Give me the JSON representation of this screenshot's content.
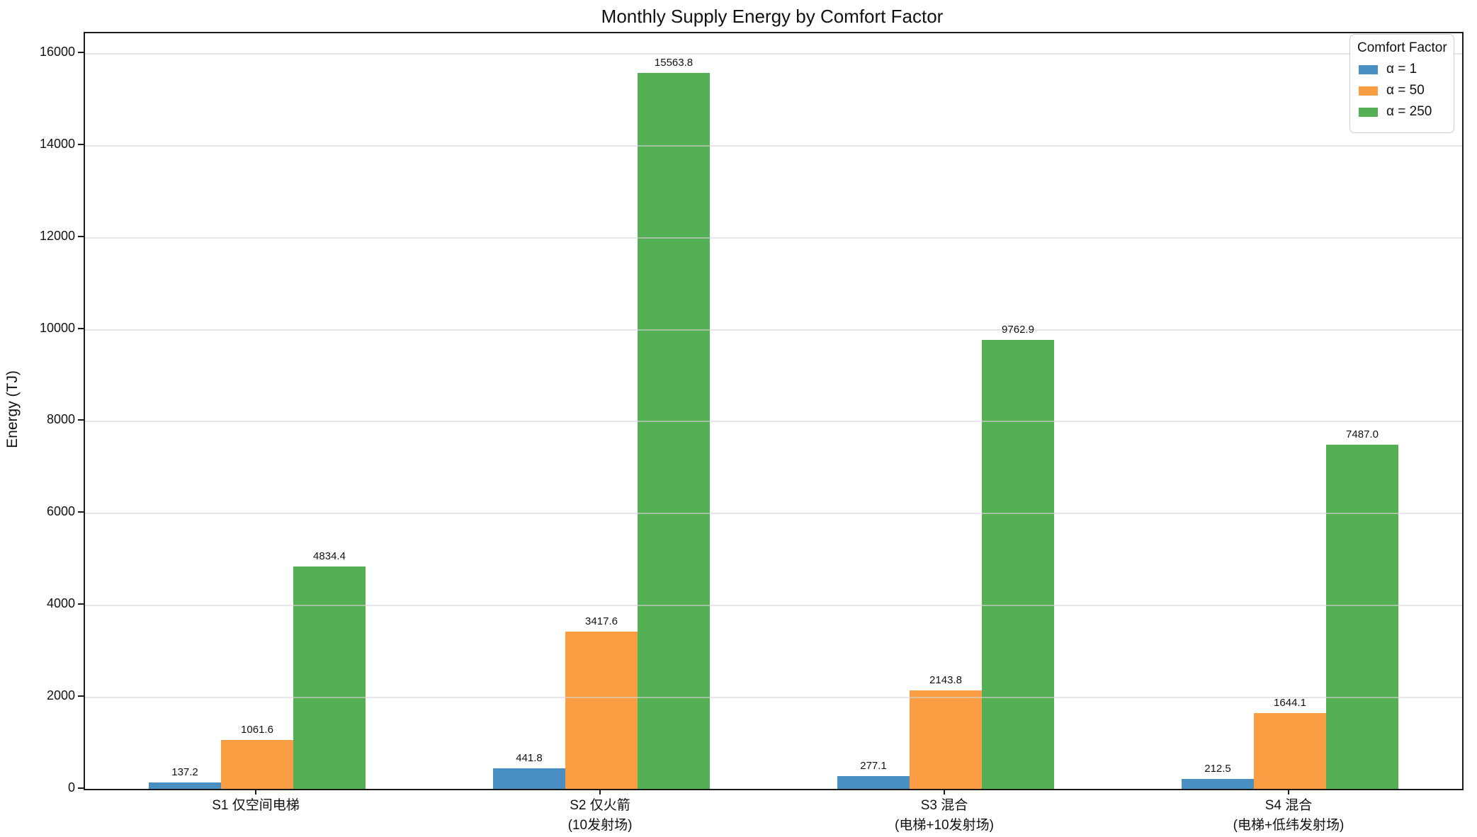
{
  "chart_data": {
    "type": "bar",
    "title": "Monthly Supply Energy by Comfort Factor",
    "xlabel": "",
    "ylabel": "Energy (TJ)",
    "ylim": [
      0,
      16430
    ],
    "yticks": [
      0,
      2000,
      4000,
      6000,
      8000,
      10000,
      12000,
      14000,
      16000
    ],
    "grid": true,
    "grid_axis": "y",
    "legend_title": "Comfort Factor",
    "legend_position": "upper right",
    "bar_value_labels": true,
    "categories": [
      "S1 仅空间电梯",
      "S2 仅火箭\n(10发射场)",
      "S3 混合\n(电梯+10发射场)",
      "S4 混合\n(电梯+低纬发射场)"
    ],
    "series": [
      {
        "name": "α = 1",
        "color": "#4A8FC2",
        "values": [
          137.2,
          441.8,
          277.1,
          212.5
        ]
      },
      {
        "name": "α = 50",
        "color": "#FB9E43",
        "values": [
          1061.6,
          3417.6,
          2143.8,
          1644.1
        ]
      },
      {
        "name": "α = 250",
        "color": "#55B055",
        "values": [
          4834.4,
          15563.8,
          9762.9,
          7487.0
        ]
      }
    ]
  }
}
